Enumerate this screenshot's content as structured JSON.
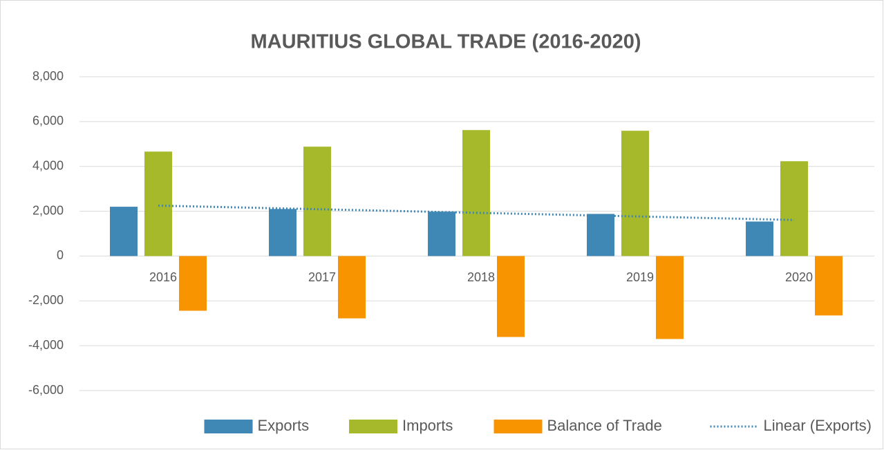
{
  "chart_data": {
    "type": "bar",
    "title": "MAURITIUS GLOBAL TRADE (2016-2020)",
    "categories": [
      "2016",
      "2017",
      "2018",
      "2019",
      "2020"
    ],
    "series": [
      {
        "name": "Exports",
        "color": "#3f87b5",
        "values": [
          2200,
          2100,
          1980,
          1880,
          1540
        ]
      },
      {
        "name": "Imports",
        "color": "#a5b92a",
        "values": [
          4660,
          4880,
          5620,
          5590,
          4230
        ]
      },
      {
        "name": "Balance of Trade",
        "color": "#f79400",
        "values": [
          -2440,
          -2780,
          -3610,
          -3700,
          -2650
        ]
      },
      {
        "name": "Linear (Exports)",
        "color": "#3f87b5",
        "type": "line",
        "dotted": true,
        "values": [
          2250,
          2090,
          1930,
          1770,
          1610
        ]
      }
    ],
    "ylim": [
      -6000,
      8000
    ],
    "yticks": [
      {
        "value": -6000,
        "label": "-6,000"
      },
      {
        "value": -4000,
        "label": "-4,000"
      },
      {
        "value": -2000,
        "label": "-2,000"
      },
      0,
      {
        "value": 2000,
        "label": "2,000"
      },
      {
        "value": 4000,
        "label": "4,000"
      },
      {
        "value": 6000,
        "label": "6,000"
      },
      {
        "value": 8000,
        "label": "8,000"
      }
    ],
    "grid": true,
    "legend": "bottom"
  }
}
